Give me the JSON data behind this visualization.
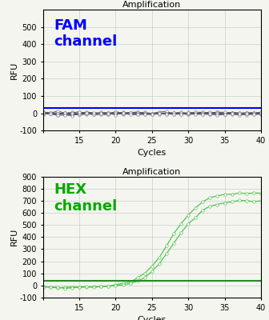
{
  "title": "Amplification",
  "xlabel": "Cycles",
  "ylabel": "RFU",
  "fam_label": "FAM\nchannel",
  "hex_label": "HEX\nchannel",
  "fam_color": "#0000FF",
  "hex_color": "#228822",
  "fam_label_color": "#0000FF",
  "hex_label_color": "#00AA00",
  "fam_ylim": [
    -100,
    600
  ],
  "hex_ylim": [
    -100,
    900
  ],
  "xlim": [
    10,
    40
  ],
  "fam_yticks": [
    -100,
    0,
    100,
    200,
    300,
    400,
    500
  ],
  "hex_yticks": [
    -100,
    0,
    100,
    200,
    300,
    400,
    500,
    600,
    700,
    800,
    900
  ],
  "xticks": [
    10,
    15,
    20,
    25,
    30,
    35,
    40
  ],
  "xtick_labels": [
    "",
    "15",
    "20",
    "25",
    "30",
    "35",
    "40"
  ],
  "fam_threshold": 30,
  "hex_threshold": 40,
  "background_color": "#f5f5f0",
  "grid_color": "#cccccc",
  "line_color_fam": "#555566",
  "line_color_hex": "#44bb44",
  "marker_color_fam": "#888899",
  "marker_color_hex": "#55cc55",
  "hex_line1_params": [
    780,
    27.5,
    0.5,
    -15
  ],
  "hex_line2_params": [
    720,
    28.0,
    0.5,
    -15
  ]
}
